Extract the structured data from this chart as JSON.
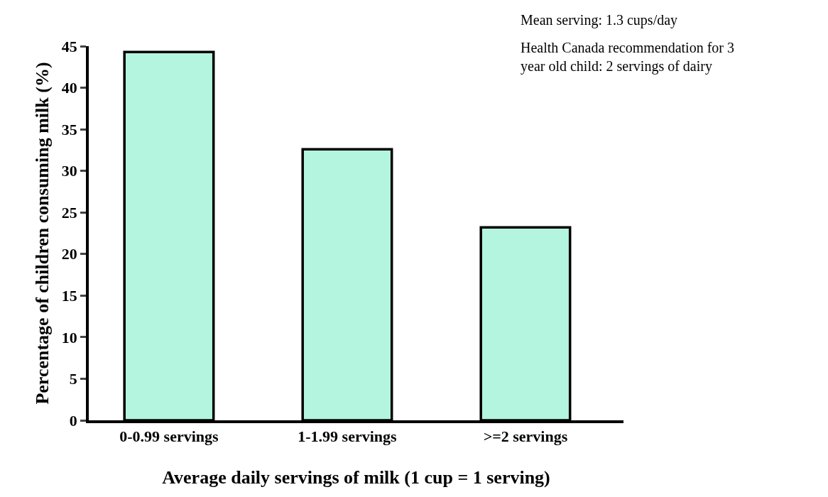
{
  "chart_data": {
    "type": "bar",
    "xlabel": "Average daily servings of milk (1 cup = 1 serving)",
    "ylabel": "Percentage of children consuming milk (%)",
    "categories": [
      "0-0.99 servings",
      "1-1.99 servings",
      ">=2 servings"
    ],
    "values": [
      44.3,
      32.6,
      23.2
    ],
    "color": "#b3f5df",
    "ylim": [
      0,
      45
    ],
    "yticks": [
      0,
      5,
      10,
      15,
      20,
      25,
      30,
      35,
      40,
      45
    ],
    "grid": false,
    "annotations": [
      "Mean serving: 1.3 cups/day",
      "Health Canada recommendation for 3 year old child: 2 servings of dairy"
    ]
  }
}
